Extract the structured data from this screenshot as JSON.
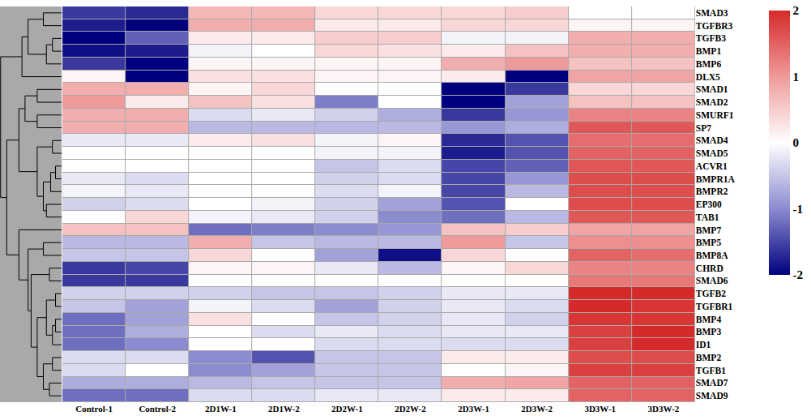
{
  "chart_data": {
    "type": "heatmap",
    "x": [
      "Control-1",
      "Control-2",
      "2D1W-1",
      "2D1W-2",
      "2D2W-1",
      "2D2W-2",
      "2D3W-1",
      "2D3W-2",
      "3D3W-1",
      "3D3W-2"
    ],
    "y": [
      "SMAD3",
      "TGFBR3",
      "TGFB3",
      "BMP1",
      "BMP6",
      "DLX5",
      "SMAD1",
      "SMAD2",
      "SMURF1",
      "SP7",
      "SMAD4",
      "SMAD5",
      "ACVR1",
      "BMPR1A",
      "BMPR2",
      "EP300",
      "TAB1",
      "BMP7",
      "BMP5",
      "BMP8A",
      "CHRD",
      "SMAD6",
      "TGFB2",
      "TGFBR1",
      "BMP4",
      "BMP3",
      "ID1",
      "BMP2",
      "TGFB1",
      "SMAD7",
      "SMAD9"
    ],
    "z": [
      [
        -1.6,
        -1.7,
        0.7,
        0.7,
        0.4,
        0.4,
        0.4,
        0.5,
        0.0,
        0.0
      ],
      [
        -1.8,
        -2.0,
        0.8,
        0.8,
        0.2,
        0.2,
        0.4,
        0.4,
        0.1,
        0.1
      ],
      [
        -2.0,
        -1.3,
        0.2,
        0.2,
        0.5,
        0.5,
        -0.1,
        -0.1,
        0.8,
        0.8
      ],
      [
        -1.9,
        -1.8,
        -0.1,
        0.0,
        0.4,
        0.3,
        0.2,
        0.6,
        0.8,
        0.8
      ],
      [
        -1.6,
        -2.0,
        0.1,
        0.1,
        0.1,
        0.1,
        0.8,
        1.0,
        0.6,
        0.6
      ],
      [
        0.1,
        -2.0,
        0.3,
        0.3,
        0.1,
        0.1,
        0.2,
        -2.0,
        0.9,
        0.9
      ],
      [
        0.8,
        0.8,
        0.1,
        0.4,
        0.0,
        0.0,
        -2.0,
        -1.6,
        0.4,
        0.4
      ],
      [
        1.0,
        0.2,
        0.6,
        0.3,
        -1.1,
        0.0,
        -2.0,
        -0.8,
        0.6,
        0.6
      ],
      [
        0.8,
        0.8,
        -0.3,
        -0.2,
        -0.4,
        -0.7,
        -1.6,
        -0.9,
        1.2,
        1.2
      ],
      [
        0.8,
        0.8,
        -0.6,
        -0.6,
        -0.6,
        -0.6,
        -0.9,
        -0.7,
        1.6,
        1.6
      ],
      [
        -0.2,
        -0.2,
        0.2,
        0.3,
        -0.1,
        0.1,
        -1.7,
        -1.4,
        1.4,
        1.4
      ],
      [
        0.0,
        0.0,
        0.0,
        0.0,
        -0.1,
        -0.1,
        -1.8,
        -1.4,
        1.5,
        1.5
      ],
      [
        0.0,
        0.0,
        0.0,
        0.0,
        -0.5,
        -0.3,
        -1.5,
        -1.3,
        1.6,
        1.6
      ],
      [
        -0.2,
        -0.3,
        0.0,
        0.0,
        -0.4,
        -0.3,
        -1.5,
        -0.9,
        1.7,
        1.7
      ],
      [
        -0.1,
        -0.2,
        0.0,
        0.0,
        -0.3,
        -0.1,
        -1.5,
        -0.6,
        1.7,
        1.7
      ],
      [
        -0.4,
        -0.3,
        0.0,
        -0.1,
        -0.4,
        -0.8,
        -1.4,
        0.0,
        1.7,
        1.7
      ],
      [
        0.0,
        0.4,
        -0.1,
        -0.2,
        -0.4,
        -1.0,
        -1.2,
        -0.6,
        1.6,
        1.6
      ],
      [
        0.6,
        0.6,
        -1.2,
        -1.1,
        -1.0,
        -0.9,
        0.6,
        0.5,
        0.9,
        0.9
      ],
      [
        -0.6,
        -0.6,
        0.8,
        -0.5,
        -0.6,
        -0.6,
        1.0,
        -0.5,
        1.1,
        1.1
      ],
      [
        -0.5,
        -0.5,
        0.4,
        0.0,
        -0.8,
        -1.9,
        0.4,
        0.0,
        1.5,
        1.4
      ],
      [
        -1.6,
        -1.5,
        0.1,
        0.1,
        -0.2,
        -0.6,
        0.1,
        0.4,
        1.2,
        1.2
      ],
      [
        -1.6,
        -1.6,
        0.0,
        0.0,
        0.0,
        0.0,
        0.0,
        0.0,
        1.3,
        1.3
      ],
      [
        -0.4,
        -0.4,
        -0.4,
        -0.5,
        -0.5,
        -0.4,
        -0.2,
        -0.2,
        2.0,
        2.0
      ],
      [
        -0.5,
        -0.8,
        -0.1,
        -0.3,
        -0.8,
        -0.4,
        -0.2,
        -0.3,
        2.0,
        1.9
      ],
      [
        -1.2,
        -0.8,
        0.3,
        0.0,
        -0.5,
        -0.4,
        -0.2,
        -0.4,
        1.9,
        1.9
      ],
      [
        -1.2,
        -0.7,
        0.0,
        -0.3,
        -0.2,
        -0.3,
        -0.2,
        -0.2,
        1.8,
        2.0
      ],
      [
        -1.2,
        -1.0,
        0.0,
        0.0,
        -0.3,
        -0.3,
        -0.3,
        -0.3,
        1.8,
        2.0
      ],
      [
        -0.3,
        -0.3,
        -1.0,
        -1.4,
        -0.5,
        -0.5,
        0.2,
        0.2,
        1.7,
        1.7
      ],
      [
        -0.3,
        0.0,
        -1.0,
        -0.8,
        -0.5,
        -0.5,
        0.0,
        0.1,
        1.8,
        1.8
      ],
      [
        -0.7,
        -0.7,
        -0.6,
        -0.5,
        -0.5,
        -0.5,
        0.8,
        0.9,
        1.5,
        1.5
      ],
      [
        -1.2,
        -1.2,
        -0.3,
        -0.3,
        -0.2,
        -0.2,
        0.2,
        0.2,
        1.5,
        1.5
      ]
    ],
    "colorbar_range": [
      -2,
      2
    ],
    "colorbar_ticks": [
      -2,
      -1,
      0,
      1,
      2
    ],
    "row_dendrogram": [
      [
        0,
        1,
        3.0
      ],
      [
        2,
        3,
        1.5
      ],
      [
        32,
        4,
        2.5
      ],
      [
        31,
        33,
        5.5
      ],
      [
        34,
        5,
        6.5
      ],
      [
        6,
        7,
        4.0
      ],
      [
        8,
        9,
        4.0
      ],
      [
        36,
        37,
        6.0
      ],
      [
        10,
        11,
        1.5
      ],
      [
        12,
        13,
        1.0
      ],
      [
        40,
        14,
        1.8
      ],
      [
        15,
        16,
        2.5
      ],
      [
        41,
        42,
        3.0
      ],
      [
        39,
        43,
        4.0
      ],
      [
        38,
        44,
        7.0
      ],
      [
        20,
        21,
        2.0
      ],
      [
        18,
        19,
        3.0
      ],
      [
        22,
        23,
        1.0
      ],
      [
        24,
        25,
        1.0
      ],
      [
        49,
        26,
        1.5
      ],
      [
        48,
        50,
        2.5
      ],
      [
        27,
        28,
        1.5
      ],
      [
        29,
        30,
        2.0
      ],
      [
        52,
        53,
        3.0
      ],
      [
        51,
        54,
        4.0
      ],
      [
        46,
        55,
        5.0
      ],
      [
        47,
        56,
        5.5
      ],
      [
        17,
        57,
        7.0
      ],
      [
        45,
        58,
        9.0
      ],
      [
        35,
        59,
        10.0
      ]
    ]
  }
}
